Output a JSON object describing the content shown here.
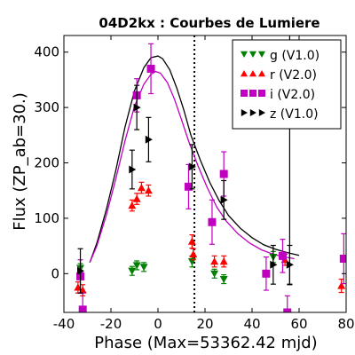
{
  "chart_data": {
    "type": "scatter",
    "title": "04D2kx : Courbes de Lumiere",
    "xlabel": "Phase (Max=53362.42 mjd)",
    "ylabel": "Flux (ZP_ab=30.)",
    "xlim": [
      -40,
      80
    ],
    "ylim": [
      -70,
      430
    ],
    "xticks": [
      -40,
      -20,
      0,
      20,
      40,
      60,
      80
    ],
    "xtick_labels": [
      "-40",
      "-20",
      "0",
      "20",
      "40",
      "60",
      "80"
    ],
    "yticks": [
      0,
      100,
      200,
      300,
      400
    ],
    "ytick_labels": [
      "0",
      "100",
      "200",
      "300",
      "400"
    ],
    "grid": false,
    "legend_position": "top-right",
    "max_phase_line": 15.5,
    "series": [
      {
        "name": "g (V1.0)",
        "color": "#008000",
        "marker": "triangle-down",
        "points": [
          {
            "x": -33,
            "y": 10,
            "err": 8
          },
          {
            "x": -11,
            "y": 5,
            "err": 8
          },
          {
            "x": -9,
            "y": 15,
            "err": 8
          },
          {
            "x": -6,
            "y": 12,
            "err": 8
          },
          {
            "x": 14.5,
            "y": 22,
            "err": 10
          },
          {
            "x": 24,
            "y": 0,
            "err": 8
          },
          {
            "x": 28,
            "y": -10,
            "err": 8
          },
          {
            "x": 49,
            "y": 30,
            "err": 10
          }
        ]
      },
      {
        "name": "r (V2.0)",
        "color": "#ff0000",
        "marker": "triangle-up",
        "points": [
          {
            "x": -34,
            "y": -25,
            "err": 10
          },
          {
            "x": -32,
            "y": -30,
            "err": 10
          },
          {
            "x": -11,
            "y": 123,
            "err": 10
          },
          {
            "x": -9,
            "y": 135,
            "err": 10
          },
          {
            "x": -7,
            "y": 155,
            "err": 10
          },
          {
            "x": -4,
            "y": 150,
            "err": 10
          },
          {
            "x": 14.5,
            "y": 58,
            "err": 12
          },
          {
            "x": 15,
            "y": 35,
            "err": 10
          },
          {
            "x": 24,
            "y": 22,
            "err": 10
          },
          {
            "x": 28,
            "y": 22,
            "err": 10
          },
          {
            "x": 54,
            "y": 25,
            "err": 10
          },
          {
            "x": 78,
            "y": -22,
            "err": 12
          }
        ]
      },
      {
        "name": "i (V2.0)",
        "color": "#bf00bf",
        "marker": "square",
        "points": [
          {
            "x": -33,
            "y": -5,
            "err": 30
          },
          {
            "x": -32,
            "y": -65,
            "err": 30
          },
          {
            "x": -9,
            "y": 322,
            "err": 30
          },
          {
            "x": -3,
            "y": 370,
            "err": 45
          },
          {
            "x": 13,
            "y": 157,
            "err": 40
          },
          {
            "x": 23,
            "y": 93,
            "err": 40
          },
          {
            "x": 28,
            "y": 180,
            "err": 40
          },
          {
            "x": 46,
            "y": 0,
            "err": 30
          },
          {
            "x": 53,
            "y": 32,
            "err": 30
          },
          {
            "x": 55,
            "y": -70,
            "err": 30
          },
          {
            "x": 79,
            "y": 27,
            "err": 45
          }
        ]
      },
      {
        "name": "z (V1.0)",
        "color": "#000000",
        "marker": "triangle-right",
        "points": [
          {
            "x": -33,
            "y": 5,
            "err": 40
          },
          {
            "x": -11,
            "y": 188,
            "err": 35
          },
          {
            "x": -9,
            "y": 300,
            "err": 40
          },
          {
            "x": -4,
            "y": 242,
            "err": 40
          },
          {
            "x": 14.5,
            "y": 193,
            "err": 40
          },
          {
            "x": 28,
            "y": 133,
            "err": 35
          },
          {
            "x": 49,
            "y": 16,
            "err": 35
          },
          {
            "x": 56,
            "y": 16,
            "err": 35
          },
          {
            "x": 56,
            "y": 280,
            "err": 300
          }
        ]
      }
    ],
    "curves": [
      {
        "color": "#000000",
        "points": [
          [
            -29,
            20
          ],
          [
            -26,
            55
          ],
          [
            -22,
            115
          ],
          [
            -18,
            185
          ],
          [
            -14,
            265
          ],
          [
            -10,
            330
          ],
          [
            -6,
            372
          ],
          [
            -3,
            390
          ],
          [
            0,
            393
          ],
          [
            2,
            388
          ],
          [
            5,
            368
          ],
          [
            8,
            335
          ],
          [
            11,
            295
          ],
          [
            14,
            250
          ],
          [
            18,
            205
          ],
          [
            22,
            165
          ],
          [
            26,
            132
          ],
          [
            30,
            105
          ],
          [
            35,
            82
          ],
          [
            40,
            65
          ],
          [
            45,
            52
          ],
          [
            50,
            44
          ],
          [
            55,
            38
          ],
          [
            60,
            33
          ]
        ]
      },
      {
        "color": "#bf00bf",
        "points": [
          [
            -29,
            20
          ],
          [
            -26,
            50
          ],
          [
            -22,
            105
          ],
          [
            -18,
            170
          ],
          [
            -14,
            240
          ],
          [
            -10,
            302
          ],
          [
            -6,
            342
          ],
          [
            -3,
            360
          ],
          [
            -1,
            365
          ],
          [
            1,
            362
          ],
          [
            4,
            345
          ],
          [
            7,
            315
          ],
          [
            10,
            278
          ],
          [
            13,
            240
          ],
          [
            17,
            195
          ],
          [
            21,
            155
          ],
          [
            25,
            120
          ],
          [
            29,
            95
          ],
          [
            34,
            72
          ],
          [
            39,
            55
          ],
          [
            44,
            43
          ],
          [
            49,
            35
          ],
          [
            54,
            30
          ],
          [
            58,
            27
          ]
        ]
      }
    ]
  }
}
